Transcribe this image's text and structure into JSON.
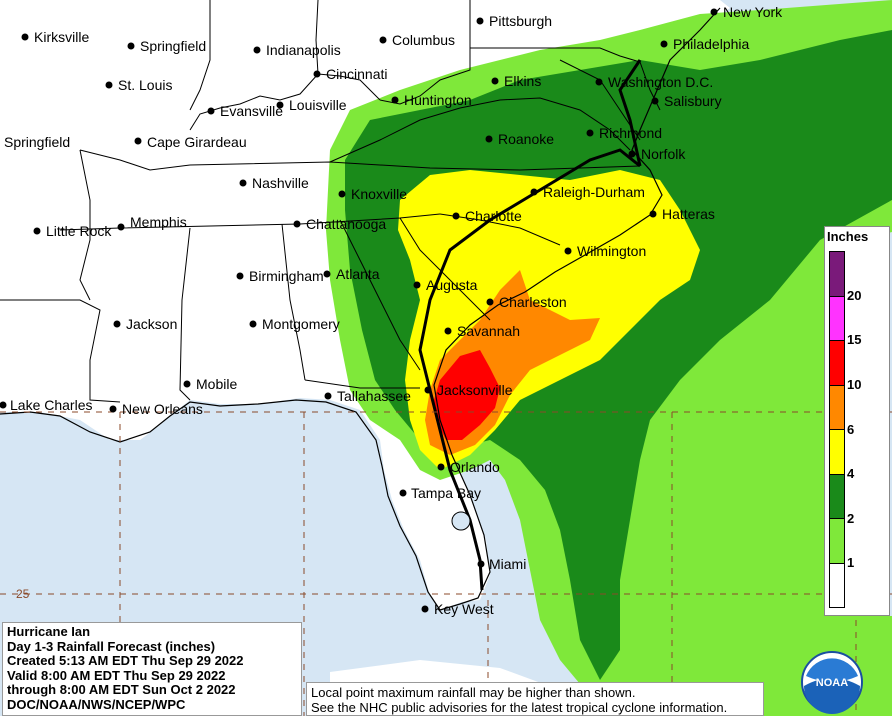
{
  "info": {
    "storm": "Hurricane Ian",
    "product": "Day 1-3 Rainfall Forecast (inches)",
    "created": "Created 5:13 AM EDT Thu Sep 29 2022",
    "valid": "Valid 8:00 AM EDT Thu Sep 29 2022",
    "through": "through 8:00 AM EDT Sun Oct 2 2022",
    "source": "DOC/NOAA/NWS/NCEP/WPC"
  },
  "disclaimer": {
    "line1": "Local point maximum rainfall may be higher than shown.",
    "line2": "See the NHC public advisories for the latest tropical cyclone information."
  },
  "legend": {
    "title": "Inches",
    "labels": [
      "20",
      "15",
      "10",
      "6",
      "4",
      "2",
      "1"
    ],
    "colors": [
      "#7a1a7a",
      "#ff33ff",
      "#ff0000",
      "#ff8800",
      "#ffff00",
      "#1a8a1a",
      "#7fe83a",
      "#ffffff"
    ]
  },
  "grid": {
    "lat_label": "25"
  },
  "logo": {
    "text": "NOAA"
  },
  "cities": {
    "kirksville": "Kirksville",
    "springfield_mo": "Springfield",
    "indianapolis": "Indianapolis",
    "columbus": "Columbus",
    "pittsburgh": "Pittsburgh",
    "new_york": "New York",
    "philadelphia": "Philadelphia",
    "st_louis": "St. Louis",
    "cincinnati": "Cincinnati",
    "elkins": "Elkins",
    "washington": "Washington D.C.",
    "evansville": "Evansville",
    "louisville": "Louisville",
    "huntington": "Huntington",
    "salisbury": "Salisbury",
    "springfield_il": "Springfield",
    "cape_girardeau": "Cape Girardeau",
    "roanoke": "Roanoke",
    "richmond": "Richmond",
    "norfolk": "Norfolk",
    "nashville": "Nashville",
    "knoxville": "Knoxville",
    "raleigh": "Raleigh-Durham",
    "hatteras": "Hatteras",
    "little_rock": "Little Rock",
    "memphis": "Memphis",
    "chattanooga": "Chattanooga",
    "charlotte": "Charlotte",
    "wilmington": "Wilmington",
    "birmingham": "Birmingham",
    "atlanta": "Atlanta",
    "augusta": "Augusta",
    "charleston": "Charleston",
    "jackson": "Jackson",
    "montgomery": "Montgomery",
    "savannah": "Savannah",
    "mobile": "Mobile",
    "jacksonville": "Jacksonville",
    "tallahassee": "Tallahassee",
    "lake_charles": "Lake Charles",
    "new_orleans": "New Orleans",
    "orlando": "Orlando",
    "tampa": "Tampa Bay",
    "miami": "Miami",
    "key_west": "Key West"
  }
}
